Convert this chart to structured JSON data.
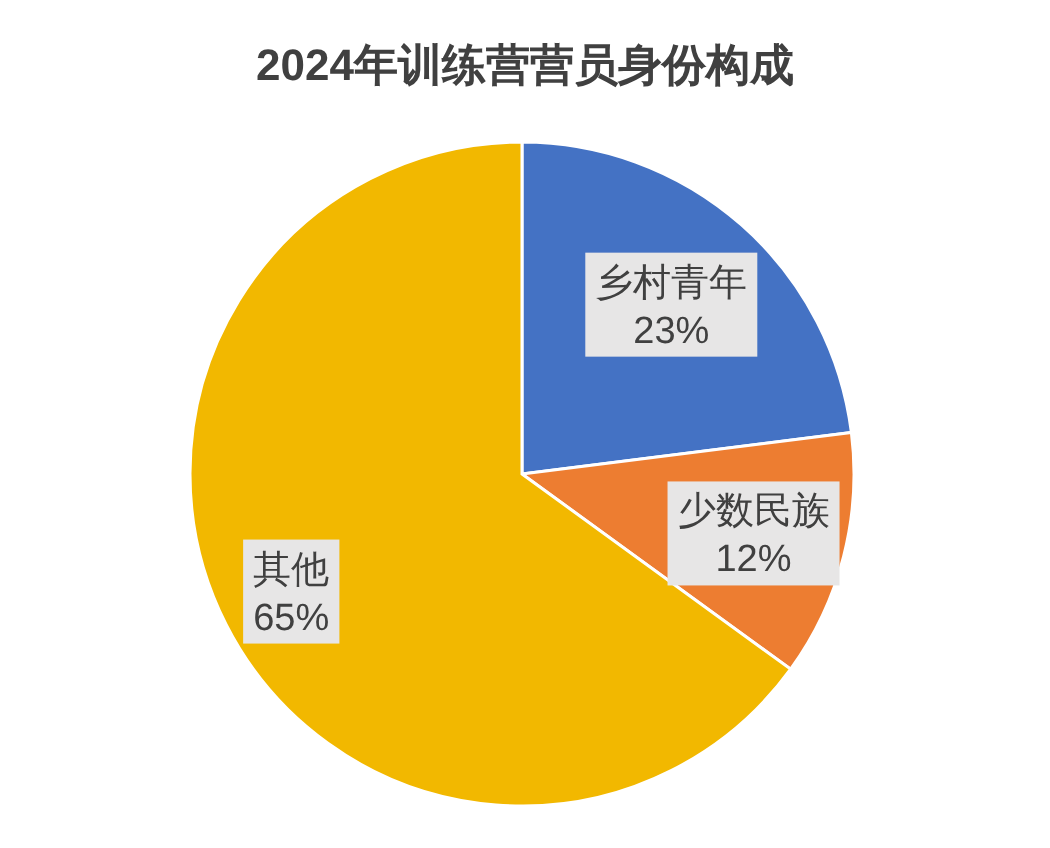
{
  "chart_data": {
    "type": "pie",
    "title": "2024年训练营营员身份构成",
    "categories": [
      "乡村青年",
      "少数民族",
      "其他"
    ],
    "values": [
      23,
      12,
      65
    ],
    "colors": [
      "#4472c4",
      "#ed7d31",
      "#f2b800"
    ],
    "value_labels": [
      "23%",
      "12%",
      "65%"
    ]
  }
}
